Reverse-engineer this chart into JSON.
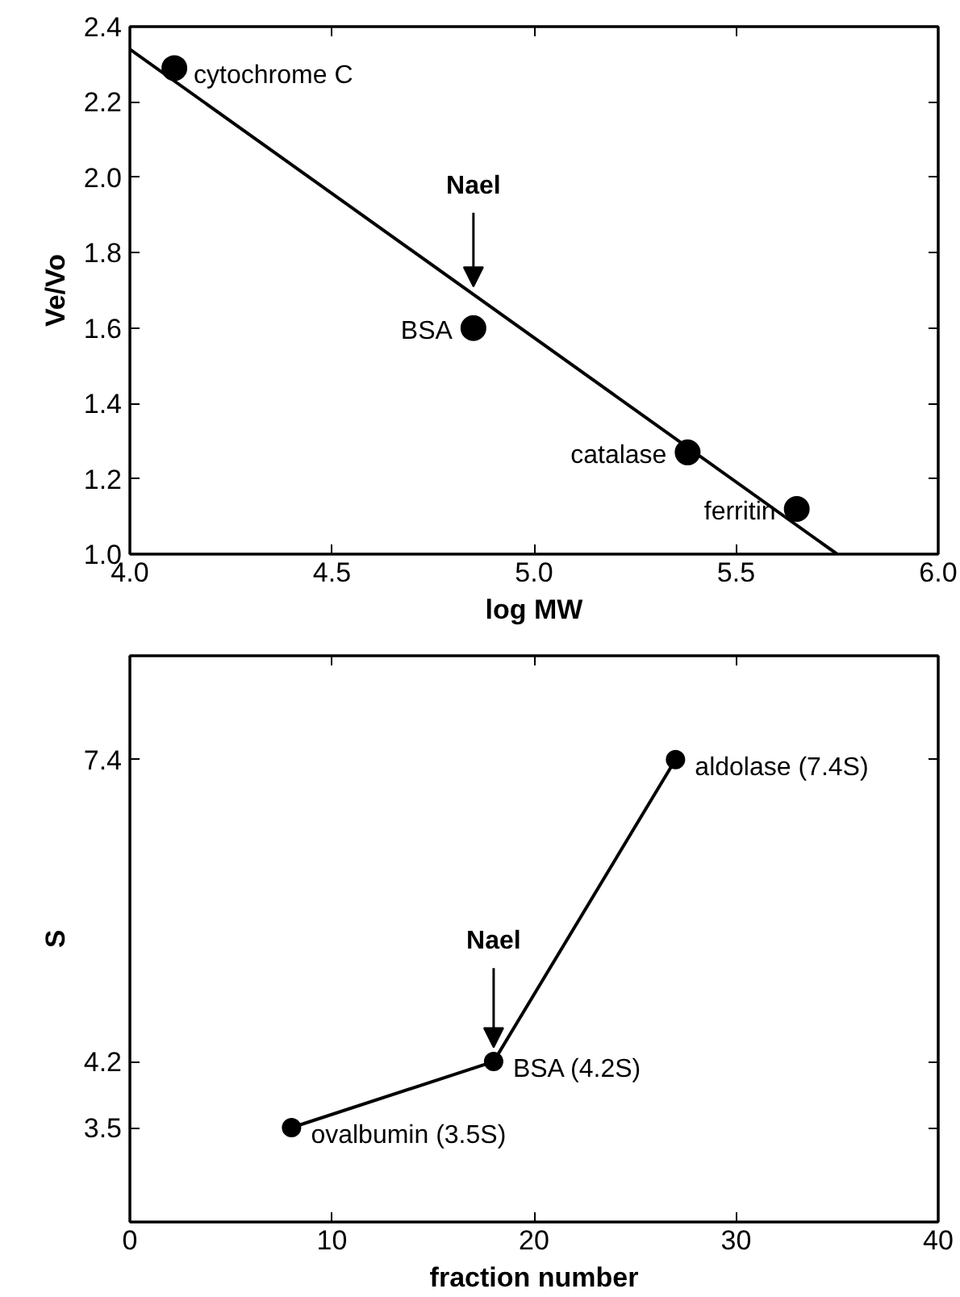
{
  "chart_data": [
    {
      "type": "scatter",
      "xlabel": "log MW",
      "ylabel": "Ve/Vo",
      "xlim": [
        4.0,
        6.0
      ],
      "ylim": [
        1.0,
        2.4
      ],
      "xticks": [
        {
          "value": 4,
          "label": "4.0"
        },
        4.5,
        {
          "value": 5,
          "label": "5.0"
        },
        5.5,
        {
          "value": 6,
          "label": "6.0"
        }
      ],
      "yticks": [
        {
          "value": 1,
          "label": "1.0"
        },
        1.2,
        1.4,
        1.6,
        1.8,
        {
          "value": 2,
          "label": "2.0"
        },
        2.2,
        2.4
      ],
      "grid": false,
      "series": [
        {
          "color": "#000000",
          "x": [
            4.11,
            4.85,
            5.38,
            5.65
          ],
          "values": [
            2.29,
            1.6,
            1.27,
            1.12
          ]
        },
        {
          "type": "line",
          "color": "#000000",
          "x": [
            4.0,
            5.75
          ],
          "values": [
            2.34,
            1.0
          ]
        }
      ],
      "annotations": [
        {
          "text": "cytochrome C",
          "x": 4.11,
          "y": 2.29
        },
        {
          "text": "BSA",
          "x": 4.85,
          "y": 1.6
        },
        {
          "text": "catalase",
          "x": 5.38,
          "y": 1.27
        },
        {
          "text": "ferritin",
          "x": 5.65,
          "y": 1.12
        },
        {
          "text": "Nael",
          "x": 4.85,
          "y": 1.71
        }
      ]
    },
    {
      "type": "line",
      "marker": "circle",
      "xlabel": "fraction number",
      "ylabel": "S",
      "xlim": [
        0,
        40
      ],
      "ylim": [
        2.5,
        8.5
      ],
      "xticks": [
        0,
        10,
        20,
        30,
        40
      ],
      "yticks": [
        3.5,
        4.2,
        7.4
      ],
      "grid": false,
      "series": [
        {
          "color": "#000000",
          "x": [
            8,
            18,
            27
          ],
          "values": [
            3.5,
            4.2,
            7.4
          ]
        }
      ],
      "annotations": [
        {
          "text": "ovalbumin (3.5S)",
          "x": 8,
          "y": 3.5
        },
        {
          "text": "BSA (4.2S)",
          "x": 18,
          "y": 4.2
        },
        {
          "text": "aldolase (7.4S)",
          "x": 27,
          "y": 7.4
        },
        {
          "text": "Nael",
          "x": 18,
          "y": 4.35
        }
      ]
    }
  ]
}
